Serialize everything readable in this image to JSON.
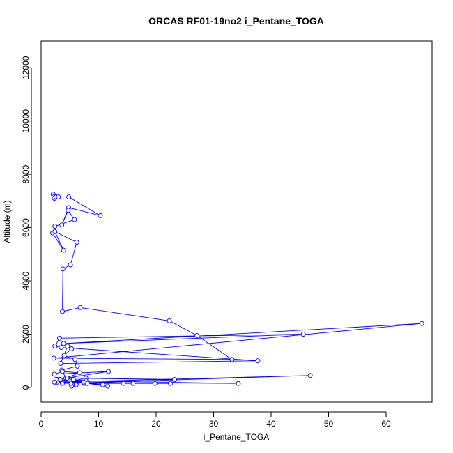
{
  "chart_data": {
    "type": "line",
    "title": "ORCAS RF01-19no2 i_Pentane_TOGA",
    "xlabel": "i_Pentane_TOGA",
    "ylabel": "Altitude (m)",
    "xlim": [
      0,
      68
    ],
    "ylim": [
      -550,
      13000
    ],
    "xticks": [
      0,
      10,
      20,
      30,
      40,
      50,
      60
    ],
    "yticks": [
      0,
      2000,
      4000,
      6000,
      8000,
      10000,
      12000
    ],
    "grid": false,
    "legend": "none",
    "markers": "open-circle",
    "color": "#0000ff",
    "series": [
      {
        "x": [
          2.1,
          2.2,
          2.5,
          2.3,
          2.6,
          3.0,
          4.8,
          10.3,
          4.8,
          3.6,
          4.7,
          5.8,
          2.4,
          2.0,
          3.9,
          2.4,
          6.2,
          5.1,
          3.8,
          3.7,
          6.8,
          22.3,
          27.1,
          33.2,
          2.2,
          66.2,
          3.9,
          45.6,
          3.2,
          2.4,
          3.5,
          37.7,
          3.4,
          4.6,
          5.3,
          4.0,
          5.9,
          6.3,
          3.6,
          4.3,
          6.7,
          3.7,
          2.3,
          11.7,
          2.8,
          2.8,
          46.8,
          3.7,
          7.8,
          23.2,
          4.5,
          7.5,
          22.5,
          16.0,
          14.3,
          19.8,
          2.4,
          34.3,
          7.8,
          5.6,
          8.0,
          11.6,
          10.7,
          2.6,
          7.4,
          5.5,
          5.3,
          6.1,
          3.3,
          5.2,
          2.3
        ],
        "y": [
          7250,
          7150,
          7150,
          7100,
          7150,
          7150,
          7150,
          6450,
          6750,
          6100,
          6650,
          6300,
          6050,
          5800,
          5150,
          5850,
          5450,
          4600,
          4450,
          2850,
          3000,
          2500,
          1950,
          1050,
          1100,
          2400,
          1650,
          2000,
          1850,
          1550,
          1500,
          1000,
          900,
          1550,
          1450,
          1200,
          1050,
          800,
          650,
          350,
          550,
          600,
          500,
          600,
          300,
          200,
          450,
          150,
          350,
          300,
          350,
          150,
          150,
          150,
          150,
          150,
          200,
          150,
          250,
          300,
          150,
          50,
          100,
          300,
          200,
          100,
          50,
          100,
          300,
          150,
          200
        ]
      }
    ]
  }
}
